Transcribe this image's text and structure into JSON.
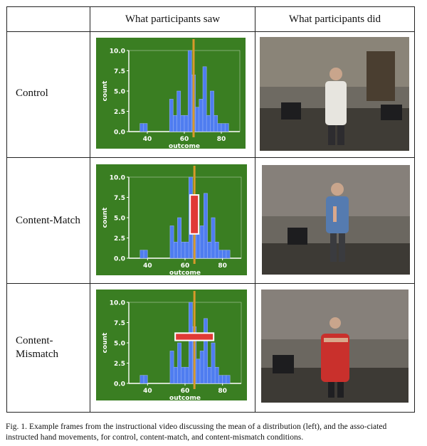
{
  "table": {
    "headers": [
      "What participants saw",
      "What participants did"
    ],
    "rows": [
      {
        "condition": "Control",
        "marker": "none"
      },
      {
        "condition": "Content-Match",
        "marker": "vertical"
      },
      {
        "condition": "Content-\nMismatch",
        "marker": "horizontal"
      }
    ]
  },
  "caption": "Fig. 1.  Example frames from the instructional video discussing the mean of a distribution (left), and the asso-ciated instructed hand movements, for control, content-match, and content-mismatch conditions.",
  "colors": {
    "plot_bg": "#3a7e22",
    "bar": "#4f7df0",
    "mean_line": "#d99a2b",
    "marker": "#e03a36"
  },
  "chart_data": [
    {
      "type": "bar",
      "xlabel": "outcome",
      "ylabel": "count",
      "xticks": [
        40,
        60,
        80
      ],
      "yticks": [
        "0.0",
        "2.5",
        "5.0",
        "7.5",
        "10.0"
      ],
      "xlim": [
        30,
        90
      ],
      "ylim": [
        0,
        10
      ],
      "bins_start": 36,
      "bin_width": 2,
      "counts": [
        1,
        1,
        0,
        0,
        0,
        0,
        0,
        0,
        4,
        2,
        5,
        2,
        2,
        10,
        7,
        3,
        4,
        8,
        2,
        5,
        2,
        1,
        1,
        1
      ],
      "mean": 65
    },
    {
      "type": "bar",
      "xlabel": "outcome",
      "ylabel": "count",
      "xticks": [
        40,
        60,
        80
      ],
      "yticks": [
        "0.0",
        "2.5",
        "5.0",
        "7.5",
        "10.0"
      ],
      "xlim": [
        30,
        90
      ],
      "ylim": [
        0,
        10
      ],
      "bins_start": 36,
      "bin_width": 2,
      "counts": [
        1,
        1,
        0,
        0,
        0,
        0,
        0,
        0,
        4,
        2,
        5,
        2,
        2,
        10,
        7,
        3,
        4,
        8,
        2,
        5,
        2,
        1,
        1,
        1
      ],
      "mean": 65
    },
    {
      "type": "bar",
      "xlabel": "outcome",
      "ylabel": "count",
      "xticks": [
        40,
        60,
        80
      ],
      "yticks": [
        "0.0",
        "2.5",
        "5.0",
        "7.5",
        "10.0"
      ],
      "xlim": [
        30,
        90
      ],
      "ylim": [
        0,
        10
      ],
      "bins_start": 36,
      "bin_width": 2,
      "counts": [
        1,
        1,
        0,
        0,
        0,
        0,
        0,
        0,
        4,
        2,
        5,
        2,
        2,
        10,
        7,
        3,
        4,
        8,
        2,
        5,
        2,
        1,
        1,
        1
      ],
      "mean": 65
    }
  ]
}
